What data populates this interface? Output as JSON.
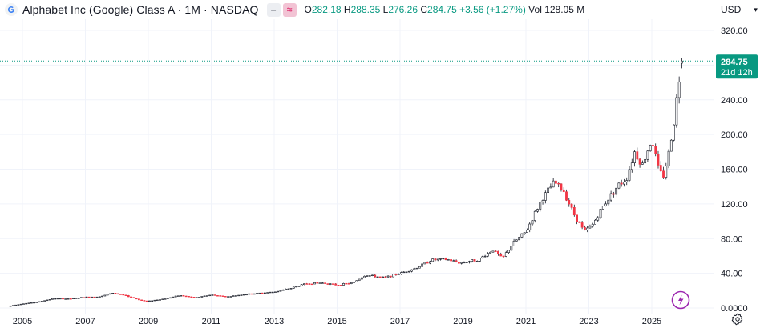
{
  "header": {
    "symbol_title": "Alphabet Inc (Google) Class A · 1M · NASDAQ",
    "toggle_a": "–",
    "toggle_b": "≈",
    "ohlc": {
      "open_key": "O",
      "open": "282.18",
      "high_key": "H",
      "high": "288.35",
      "low_key": "L",
      "low": "276.26",
      "close_key": "C",
      "close": "284.75",
      "change": "+3.56 (+1.27%)",
      "vol_key": "Vol",
      "vol": "128.05 M"
    }
  },
  "currency": "USD",
  "colors": {
    "up": "#089981",
    "down": "#f23645",
    "candle_fill_up": "#ffffff",
    "last_price": "#089981",
    "grid": "#f0f3fa",
    "axis_text": "#131722",
    "fab": "#9c27b0"
  },
  "icons": {
    "logo": "google-logo",
    "settings": "gear-icon",
    "assistant": "sparkle-icon"
  },
  "chart_data": {
    "type": "candlestick",
    "interval": "1M",
    "price_axis": {
      "ticks": [
        "320.00",
        "280.00",
        "240.00",
        "200.00",
        "160.00",
        "120.00",
        "80.00",
        "40.00",
        "0.0000"
      ],
      "tick_values": [
        320,
        280,
        240,
        200,
        160,
        120,
        80,
        40,
        0
      ],
      "ylim": [
        0,
        340
      ]
    },
    "time_axis": {
      "labels": [
        "2005",
        "2007",
        "2009",
        "2011",
        "2013",
        "2015",
        "2017",
        "2019",
        "2021",
        "2023",
        "2025"
      ],
      "label_years": [
        2005,
        2007,
        2009,
        2011,
        2013,
        2015,
        2017,
        2019,
        2021,
        2023,
        2025
      ],
      "xlim": [
        2004.6,
        2026.2
      ]
    },
    "last_price": {
      "value": 284.75,
      "label": "284.75",
      "countdown": "21d 12h"
    },
    "anchors": [
      [
        2004.62,
        2.5
      ],
      [
        2005.0,
        4.8
      ],
      [
        2005.5,
        7.0
      ],
      [
        2006.0,
        11.0
      ],
      [
        2006.5,
        10.5
      ],
      [
        2007.0,
        12.5
      ],
      [
        2007.5,
        13.2
      ],
      [
        2007.85,
        17.5
      ],
      [
        2008.3,
        14.0
      ],
      [
        2008.75,
        9.0
      ],
      [
        2008.95,
        7.7
      ],
      [
        2009.5,
        10.5
      ],
      [
        2010.0,
        14.5
      ],
      [
        2010.5,
        11.8
      ],
      [
        2011.0,
        15.2
      ],
      [
        2011.5,
        12.9
      ],
      [
        2012.0,
        15.5
      ],
      [
        2012.5,
        17.0
      ],
      [
        2013.0,
        18.5
      ],
      [
        2013.5,
        22.5
      ],
      [
        2014.0,
        28.0
      ],
      [
        2014.5,
        29.0
      ],
      [
        2015.0,
        26.5
      ],
      [
        2015.5,
        29.0
      ],
      [
        2015.9,
        38.0
      ],
      [
        2016.5,
        35.0
      ],
      [
        2017.0,
        40.0
      ],
      [
        2017.5,
        46.0
      ],
      [
        2018.0,
        55.5
      ],
      [
        2018.5,
        56.0
      ],
      [
        2018.9,
        52.0
      ],
      [
        2019.5,
        56.0
      ],
      [
        2019.95,
        67.0
      ],
      [
        2020.25,
        57.0
      ],
      [
        2020.6,
        75.0
      ],
      [
        2021.0,
        88.0
      ],
      [
        2021.5,
        125.0
      ],
      [
        2021.9,
        145.0
      ],
      [
        2022.2,
        135.0
      ],
      [
        2022.5,
        110.0
      ],
      [
        2022.85,
        88.0
      ],
      [
        2023.1,
        95.0
      ],
      [
        2023.5,
        120.0
      ],
      [
        2023.9,
        140.0
      ],
      [
        2024.2,
        150.0
      ],
      [
        2024.45,
        180.0
      ],
      [
        2024.7,
        165.0
      ],
      [
        2025.0,
        195.0
      ],
      [
        2025.2,
        162.0
      ],
      [
        2025.35,
        150.0
      ],
      [
        2025.55,
        180.0
      ],
      [
        2025.7,
        215.0
      ],
      [
        2025.82,
        250.0
      ],
      [
        2025.92,
        278.0
      ],
      [
        2025.98,
        284.75
      ]
    ]
  }
}
